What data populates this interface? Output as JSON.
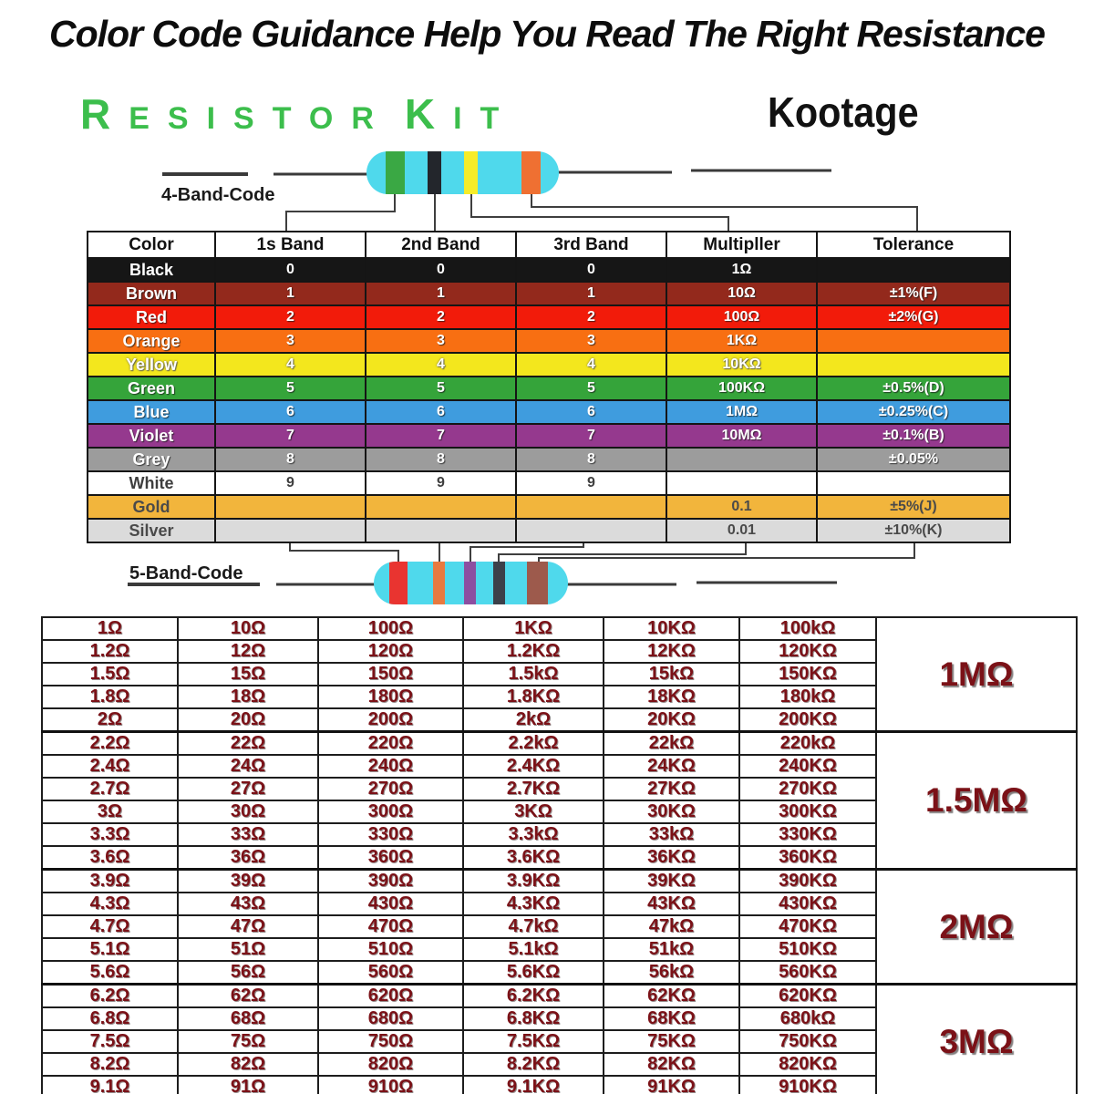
{
  "title": "Color Code Guidance Help You Read The Right Resistance",
  "brand": {
    "kit_r": "R",
    "kit_esistor": "ESISTOR",
    "kit_k": "K",
    "kit_it": "IT",
    "logo": "Kootage"
  },
  "labels": {
    "four_band": "4-Band-Code",
    "five_band": "5-Band-Code"
  },
  "colors": {
    "resistor_body": "#4FD9EC",
    "kit_green": "#3CBE4C",
    "value_text": "#7B1117"
  },
  "four_band_resistor": {
    "bands": [
      {
        "name": "green",
        "hex": "#3AA844"
      },
      {
        "name": "black",
        "hex": "#23262C"
      },
      {
        "name": "yellow",
        "hex": "#F6EC29"
      },
      {
        "name": "orange",
        "hex": "#EF7032"
      }
    ]
  },
  "five_band_resistor": {
    "bands": [
      {
        "name": "red",
        "hex": "#E93430"
      },
      {
        "name": "orange",
        "hex": "#E87A40"
      },
      {
        "name": "violet",
        "hex": "#8C4FA0"
      },
      {
        "name": "black",
        "hex": "#3C4049"
      },
      {
        "name": "brown",
        "hex": "#9D5A4C"
      }
    ]
  },
  "color_table": {
    "headers": [
      "Color",
      "1s Band",
      "2nd Band",
      "3rd Band",
      "Multipller",
      "Tolerance"
    ],
    "rows": [
      {
        "name": "Black",
        "b1": "0",
        "b2": "0",
        "b3": "0",
        "multiplier": "1Ω",
        "tolerance": "",
        "bg": "#161616",
        "fg": "#FFFFFF"
      },
      {
        "name": "Brown",
        "b1": "1",
        "b2": "1",
        "b3": "1",
        "multiplier": "10Ω",
        "tolerance": "±1%(F)",
        "bg": "#93291C",
        "fg": "#FFFFFF"
      },
      {
        "name": "Red",
        "b1": "2",
        "b2": "2",
        "b3": "2",
        "multiplier": "100Ω",
        "tolerance": "±2%(G)",
        "bg": "#F21B0A",
        "fg": "#FFFFFF"
      },
      {
        "name": "Orange",
        "b1": "3",
        "b2": "3",
        "b3": "3",
        "multiplier": "1KΩ",
        "tolerance": "",
        "bg": "#F86F12",
        "fg": "#FFFFFF"
      },
      {
        "name": "Yellow",
        "b1": "4",
        "b2": "4",
        "b3": "4",
        "multiplier": "10KΩ",
        "tolerance": "",
        "bg": "#F3E71D",
        "fg": "#FFFFFF"
      },
      {
        "name": "Green",
        "b1": "5",
        "b2": "5",
        "b3": "5",
        "multiplier": "100KΩ",
        "tolerance": "±0.5%(D)",
        "bg": "#35A43A",
        "fg": "#FFFFFF"
      },
      {
        "name": "Blue",
        "b1": "6",
        "b2": "6",
        "b3": "6",
        "multiplier": "1MΩ",
        "tolerance": "±0.25%(C)",
        "bg": "#3F9CDE",
        "fg": "#FFFFFF"
      },
      {
        "name": "Violet",
        "b1": "7",
        "b2": "7",
        "b3": "7",
        "multiplier": "10MΩ",
        "tolerance": "±0.1%(B)",
        "bg": "#95398E",
        "fg": "#FFFFFF"
      },
      {
        "name": "Grey",
        "b1": "8",
        "b2": "8",
        "b3": "8",
        "multiplier": "",
        "tolerance": "±0.05%",
        "bg": "#9C9C9C",
        "fg": "#FFFFFF"
      },
      {
        "name": "White",
        "b1": "9",
        "b2": "9",
        "b3": "9",
        "multiplier": "",
        "tolerance": "",
        "bg": "#FFFFFF",
        "fg": "#3E3E3E"
      },
      {
        "name": "Gold",
        "b1": "",
        "b2": "",
        "b3": "",
        "multiplier": "0.1",
        "tolerance": "±5%(J)",
        "bg": "#F2B53C",
        "fg": "#4A4A4A"
      },
      {
        "name": "Silver",
        "b1": "",
        "b2": "",
        "b3": "",
        "multiplier": "0.01",
        "tolerance": "±10%(K)",
        "bg": "#DBDBDB",
        "fg": "#4A4A4A"
      }
    ]
  },
  "value_table": {
    "groups": [
      {
        "label": "1MΩ",
        "rows": [
          [
            "1Ω",
            "10Ω",
            "100Ω",
            "1KΩ",
            "10KΩ",
            "100kΩ"
          ],
          [
            "1.2Ω",
            "12Ω",
            "120Ω",
            "1.2KΩ",
            "12KΩ",
            "120KΩ"
          ],
          [
            "1.5Ω",
            "15Ω",
            "150Ω",
            "1.5kΩ",
            "15kΩ",
            "150KΩ"
          ],
          [
            "1.8Ω",
            "18Ω",
            "180Ω",
            "1.8KΩ",
            "18KΩ",
            "180kΩ"
          ],
          [
            "2Ω",
            "20Ω",
            "200Ω",
            "2kΩ",
            "20KΩ",
            "200KΩ"
          ]
        ]
      },
      {
        "label": "1.5MΩ",
        "rows": [
          [
            "2.2Ω",
            "22Ω",
            "220Ω",
            "2.2kΩ",
            "22kΩ",
            "220kΩ"
          ],
          [
            "2.4Ω",
            "24Ω",
            "240Ω",
            "2.4KΩ",
            "24KΩ",
            "240KΩ"
          ],
          [
            "2.7Ω",
            "27Ω",
            "270Ω",
            "2.7KΩ",
            "27KΩ",
            "270KΩ"
          ],
          [
            "3Ω",
            "30Ω",
            "300Ω",
            "3KΩ",
            "30KΩ",
            "300KΩ"
          ],
          [
            "3.3Ω",
            "33Ω",
            "330Ω",
            "3.3kΩ",
            "33kΩ",
            "330KΩ"
          ],
          [
            "3.6Ω",
            "36Ω",
            "360Ω",
            "3.6KΩ",
            "36KΩ",
            "360KΩ"
          ]
        ]
      },
      {
        "label": "2MΩ",
        "rows": [
          [
            "3.9Ω",
            "39Ω",
            "390Ω",
            "3.9KΩ",
            "39KΩ",
            "390KΩ"
          ],
          [
            "4.3Ω",
            "43Ω",
            "430Ω",
            "4.3KΩ",
            "43KΩ",
            "430KΩ"
          ],
          [
            "4.7Ω",
            "47Ω",
            "470Ω",
            "4.7kΩ",
            "47kΩ",
            "470KΩ"
          ],
          [
            "5.1Ω",
            "51Ω",
            "510Ω",
            "5.1kΩ",
            "51kΩ",
            "510KΩ"
          ],
          [
            "5.6Ω",
            "56Ω",
            "560Ω",
            "5.6KΩ",
            "56kΩ",
            "560KΩ"
          ]
        ]
      },
      {
        "label": "3MΩ",
        "rows": [
          [
            "6.2Ω",
            "62Ω",
            "620Ω",
            "6.2KΩ",
            "62KΩ",
            "620KΩ"
          ],
          [
            "6.8Ω",
            "68Ω",
            "680Ω",
            "6.8KΩ",
            "68KΩ",
            "680kΩ"
          ],
          [
            "7.5Ω",
            "75Ω",
            "750Ω",
            "7.5KΩ",
            "75KΩ",
            "750KΩ"
          ],
          [
            "8.2Ω",
            "82Ω",
            "820Ω",
            "8.2KΩ",
            "82KΩ",
            "820KΩ"
          ],
          [
            "9.1Ω",
            "91Ω",
            "910Ω",
            "9.1KΩ",
            "91KΩ",
            "910KΩ"
          ]
        ]
      }
    ]
  }
}
